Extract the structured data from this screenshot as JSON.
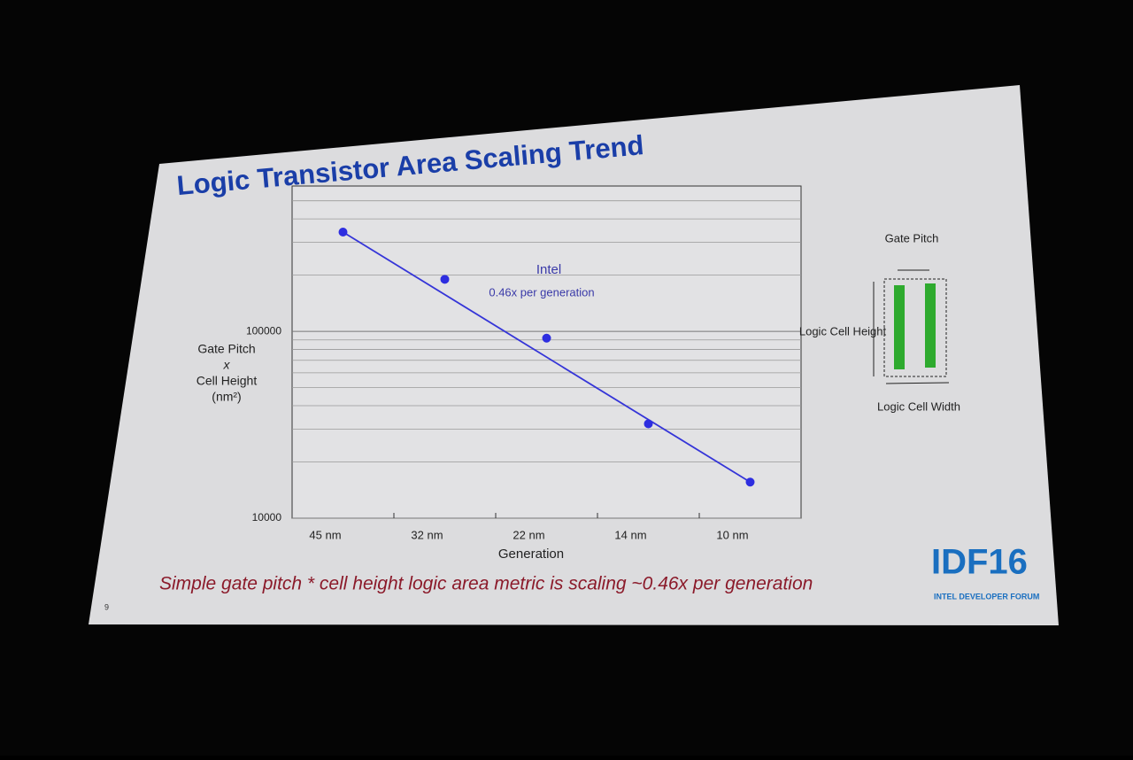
{
  "chart_data": {
    "type": "scatter",
    "title": "Logic Transistor Area Scaling Trend",
    "y_label": [
      "Gate Pitch",
      "x",
      "Cell Height",
      "(nm²)"
    ],
    "x_label": "Generation",
    "categories": [
      "45 nm",
      "32 nm",
      "22 nm",
      "14 nm",
      "10 nm"
    ],
    "series": [
      {
        "name": "Intel",
        "color": "#2e2ee0",
        "values": [
          340000,
          190000,
          92000,
          32000,
          15600
        ]
      }
    ],
    "trend_values": [
      340000,
      15600
    ],
    "trend_label": "0.46x per generation",
    "log_y": true,
    "ylim": [
      10000,
      600000
    ],
    "yticks": [
      10000,
      100000
    ],
    "minor_gridlines": [
      20000,
      30000,
      40000,
      50000,
      60000,
      70000,
      80000,
      90000,
      200000,
      300000,
      400000,
      500000
    ]
  },
  "diagram": {
    "gate_pitch": "Gate Pitch",
    "cell_height": "Logic Cell Height",
    "cell_width": "Logic Cell Width"
  },
  "caption": "Simple gate pitch * cell height logic area metric is scaling ~0.46x per generation",
  "slide_number": "9",
  "logo": {
    "name": "IDF16",
    "subtitle": "INTEL DEVELOPER FORUM"
  }
}
